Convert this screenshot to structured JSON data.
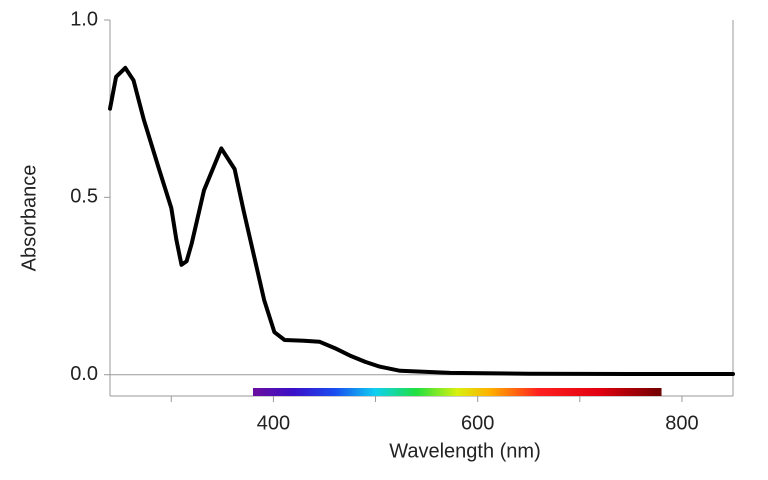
{
  "chart_data": {
    "type": "line",
    "xlabel": "Wavelength (nm)",
    "ylabel": "Absorbance",
    "x": [
      240,
      246,
      255,
      263,
      273,
      288,
      300,
      305,
      310,
      315,
      320,
      332,
      349,
      362,
      371,
      391,
      401,
      411,
      430,
      445,
      460,
      475,
      490,
      504,
      524,
      573,
      650,
      750,
      850
    ],
    "values": [
      0.75,
      0.84,
      0.865,
      0.83,
      0.72,
      0.58,
      0.47,
      0.38,
      0.31,
      0.32,
      0.37,
      0.52,
      0.638,
      0.58,
      0.46,
      0.21,
      0.12,
      0.098,
      0.096,
      0.093,
      0.075,
      0.054,
      0.036,
      0.023,
      0.011,
      0.005,
      0.003,
      0.002,
      0.002
    ],
    "color": "#000000",
    "xlim": [
      240,
      850
    ],
    "ylim": [
      -0.06,
      1.0
    ],
    "xticks": [
      400,
      600,
      800
    ],
    "xminorticks": [
      300,
      500,
      700
    ],
    "yticks": [
      {
        "value": 0,
        "label": "0.0"
      },
      0.5,
      {
        "value": 1,
        "label": "1.0"
      }
    ],
    "spectrum_range": [
      380,
      780
    ]
  }
}
